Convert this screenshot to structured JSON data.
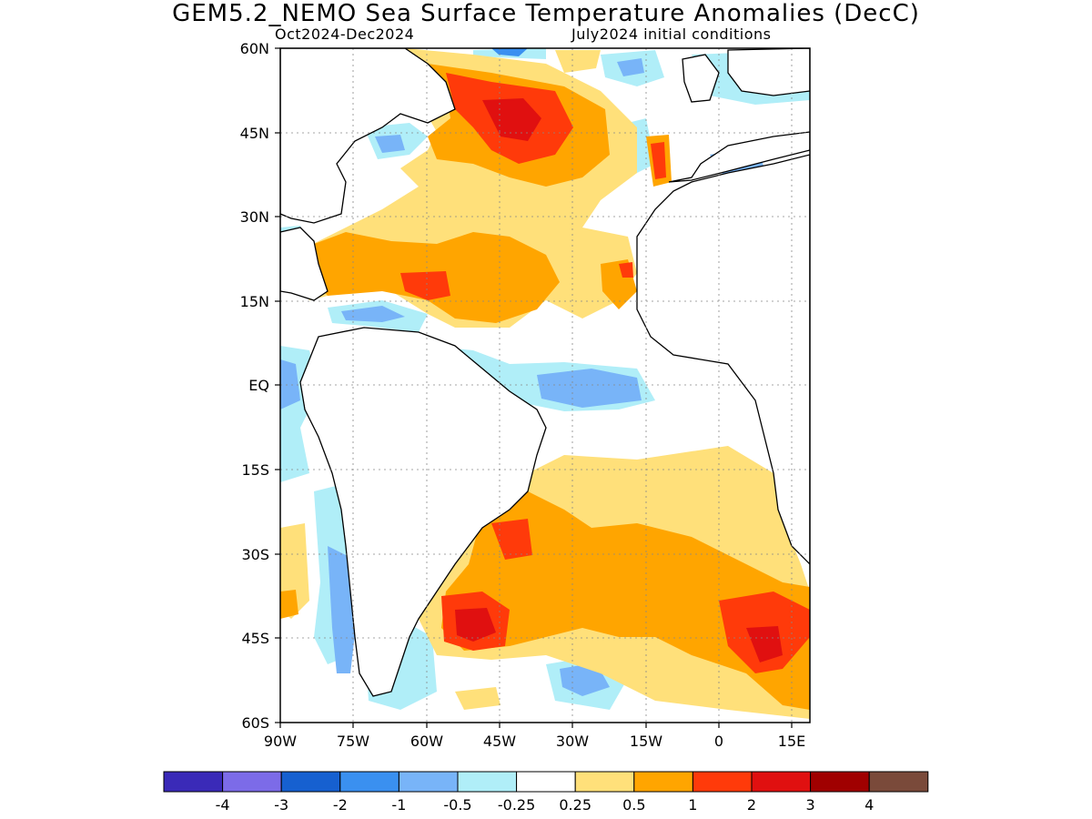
{
  "header": {
    "title": "GEM5.2_NEMO Sea Surface Temperature Anomalies (DecC)",
    "period": "Oct2024-Dec2024",
    "init": "July2024 initial conditions"
  },
  "map": {
    "lat_labels": [
      "60N",
      "45N",
      "30N",
      "15N",
      "EQ",
      "15S",
      "30S",
      "45S",
      "60S"
    ],
    "lon_labels": [
      "90W",
      "75W",
      "60W",
      "45W",
      "30W",
      "15W",
      "0",
      "15E"
    ]
  },
  "colorbar": {
    "colors": [
      "#3a2ab8",
      "#7c6be8",
      "#1660d0",
      "#3a90f0",
      "#78b4f8",
      "#b0eef8",
      "#ffffff",
      "#ffe07a",
      "#ffa500",
      "#ff3a0a",
      "#e01010",
      "#a00000",
      "#7a4a3a"
    ],
    "labels": [
      "-4",
      "-3",
      "-2",
      "-1",
      "-0.5",
      "-0.25",
      "0.25",
      "0.5",
      "1",
      "2",
      "3",
      "4"
    ]
  }
}
